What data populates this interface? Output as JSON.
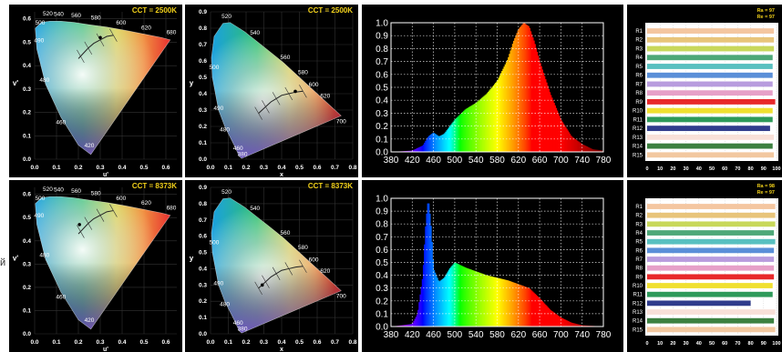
{
  "side_text": "й",
  "rows": [
    {
      "cct_label": "CCT = 2500K",
      "cri": {
        "ra_label": "Ra = 97",
        "re_label": "Re = 97"
      },
      "spectrum_peak_nm": 630
    },
    {
      "cct_label": "CCT = 8373K",
      "cri": {
        "ra_label": "Ra = 98",
        "re_label": "Re = 97"
      },
      "spectrum_peak_nm": 450
    }
  ],
  "uv_diagram": {
    "xlabel": "u'",
    "ylabel": "v'",
    "x_ticks": [
      "0.0",
      "0.1",
      "0.2",
      "0.3",
      "0.4",
      "0.5",
      "0.6"
    ],
    "y_ticks": [
      "0.0",
      "0.1",
      "0.2",
      "0.3",
      "0.4",
      "0.5",
      "0.6"
    ],
    "wavelength_labels": [
      "520",
      "540",
      "560",
      "580",
      "600",
      "620",
      "680",
      "500",
      "490",
      "480",
      "460",
      "420"
    ]
  },
  "xy_diagram": {
    "xlabel": "x",
    "ylabel": "y",
    "x_ticks": [
      "0.0",
      "0.1",
      "0.2",
      "0.3",
      "0.4",
      "0.5",
      "0.6",
      "0.7",
      "0.8"
    ],
    "y_ticks": [
      "0.0",
      "0.1",
      "0.2",
      "0.3",
      "0.4",
      "0.5",
      "0.6",
      "0.7",
      "0.8",
      "0.9"
    ],
    "wavelength_labels": [
      "520",
      "540",
      "560",
      "580",
      "600",
      "620",
      "700",
      "500",
      "490",
      "480",
      "460",
      "380"
    ]
  },
  "chart_data": [
    {
      "type": "area",
      "title": "",
      "xlabel": "",
      "ylabel": "",
      "xlim": [
        380,
        780
      ],
      "ylim": [
        0,
        1.0
      ],
      "x_ticks": [
        380,
        420,
        460,
        500,
        540,
        580,
        620,
        660,
        700,
        740,
        780
      ],
      "y_ticks": [
        0.0,
        0.1,
        0.2,
        0.3,
        0.4,
        0.5,
        0.6,
        0.7,
        0.8,
        0.9,
        1.0
      ],
      "grid": true,
      "x": [
        380,
        420,
        440,
        450,
        460,
        470,
        480,
        500,
        520,
        540,
        560,
        580,
        600,
        610,
        620,
        630,
        640,
        650,
        660,
        680,
        700,
        720,
        740,
        760,
        780
      ],
      "values": [
        0,
        0.01,
        0.05,
        0.12,
        0.15,
        0.12,
        0.14,
        0.25,
        0.33,
        0.38,
        0.45,
        0.55,
        0.72,
        0.85,
        0.95,
        1.0,
        0.97,
        0.85,
        0.7,
        0.45,
        0.25,
        0.12,
        0.06,
        0.02,
        0.01
      ]
    },
    {
      "type": "area",
      "title": "",
      "xlabel": "",
      "ylabel": "",
      "xlim": [
        380,
        780
      ],
      "ylim": [
        0,
        1.0
      ],
      "x_ticks": [
        380,
        420,
        460,
        500,
        540,
        580,
        620,
        660,
        700,
        740,
        780
      ],
      "y_ticks": [
        0.0,
        0.1,
        0.2,
        0.3,
        0.4,
        0.5,
        0.6,
        0.7,
        0.8,
        0.9,
        1.0
      ],
      "grid": true,
      "x": [
        380,
        420,
        430,
        440,
        445,
        450,
        455,
        460,
        470,
        480,
        490,
        500,
        520,
        540,
        560,
        580,
        600,
        620,
        640,
        660,
        680,
        700,
        720,
        740,
        760,
        780
      ],
      "values": [
        0,
        0.02,
        0.1,
        0.4,
        0.8,
        1.0,
        0.8,
        0.45,
        0.35,
        0.38,
        0.45,
        0.5,
        0.46,
        0.43,
        0.4,
        0.38,
        0.36,
        0.33,
        0.3,
        0.22,
        0.13,
        0.07,
        0.03,
        0.01,
        0.005,
        0
      ]
    },
    {
      "type": "bar",
      "title": "",
      "categories": [
        "R1",
        "R2",
        "R3",
        "R4",
        "R5",
        "R6",
        "R7",
        "R8",
        "R9",
        "R10",
        "R11",
        "R12",
        "R13",
        "R14",
        "R15"
      ],
      "values": [
        98,
        98,
        98,
        97,
        97,
        97,
        97,
        97,
        99,
        97,
        97,
        95,
        98,
        97,
        98
      ],
      "colors": [
        "#f4c6a0",
        "#e8c47a",
        "#c8d85a",
        "#4ea878",
        "#58c0c0",
        "#5a8fd8",
        "#b89cde",
        "#e6a0c8",
        "#e8282a",
        "#f0e030",
        "#2e9a5a",
        "#303c8c",
        "#f8e0d8",
        "#3c8040",
        "#f2c8a0"
      ],
      "xlim": [
        0,
        100
      ],
      "x_ticks": [
        0,
        10,
        20,
        30,
        40,
        50,
        60,
        70,
        80,
        90,
        100
      ]
    },
    {
      "type": "bar",
      "title": "",
      "categories": [
        "R1",
        "R2",
        "R3",
        "R4",
        "R5",
        "R6",
        "R7",
        "R8",
        "R9",
        "R10",
        "R11",
        "R12",
        "R13",
        "R14",
        "R15"
      ],
      "values": [
        99,
        99,
        99,
        98,
        99,
        98,
        98,
        98,
        98,
        97,
        97,
        80,
        99,
        98,
        99
      ],
      "colors": [
        "#f4c6a0",
        "#e8c47a",
        "#c8d85a",
        "#4ea878",
        "#58c0c0",
        "#5a8fd8",
        "#b89cde",
        "#e6a0c8",
        "#e8282a",
        "#f0e030",
        "#2e9a5a",
        "#303c8c",
        "#f8e0d8",
        "#3c8040",
        "#f2c8a0"
      ],
      "xlim": [
        0,
        100
      ],
      "x_ticks": [
        0,
        10,
        20,
        30,
        40,
        50,
        60,
        70,
        80,
        90,
        100
      ]
    }
  ]
}
